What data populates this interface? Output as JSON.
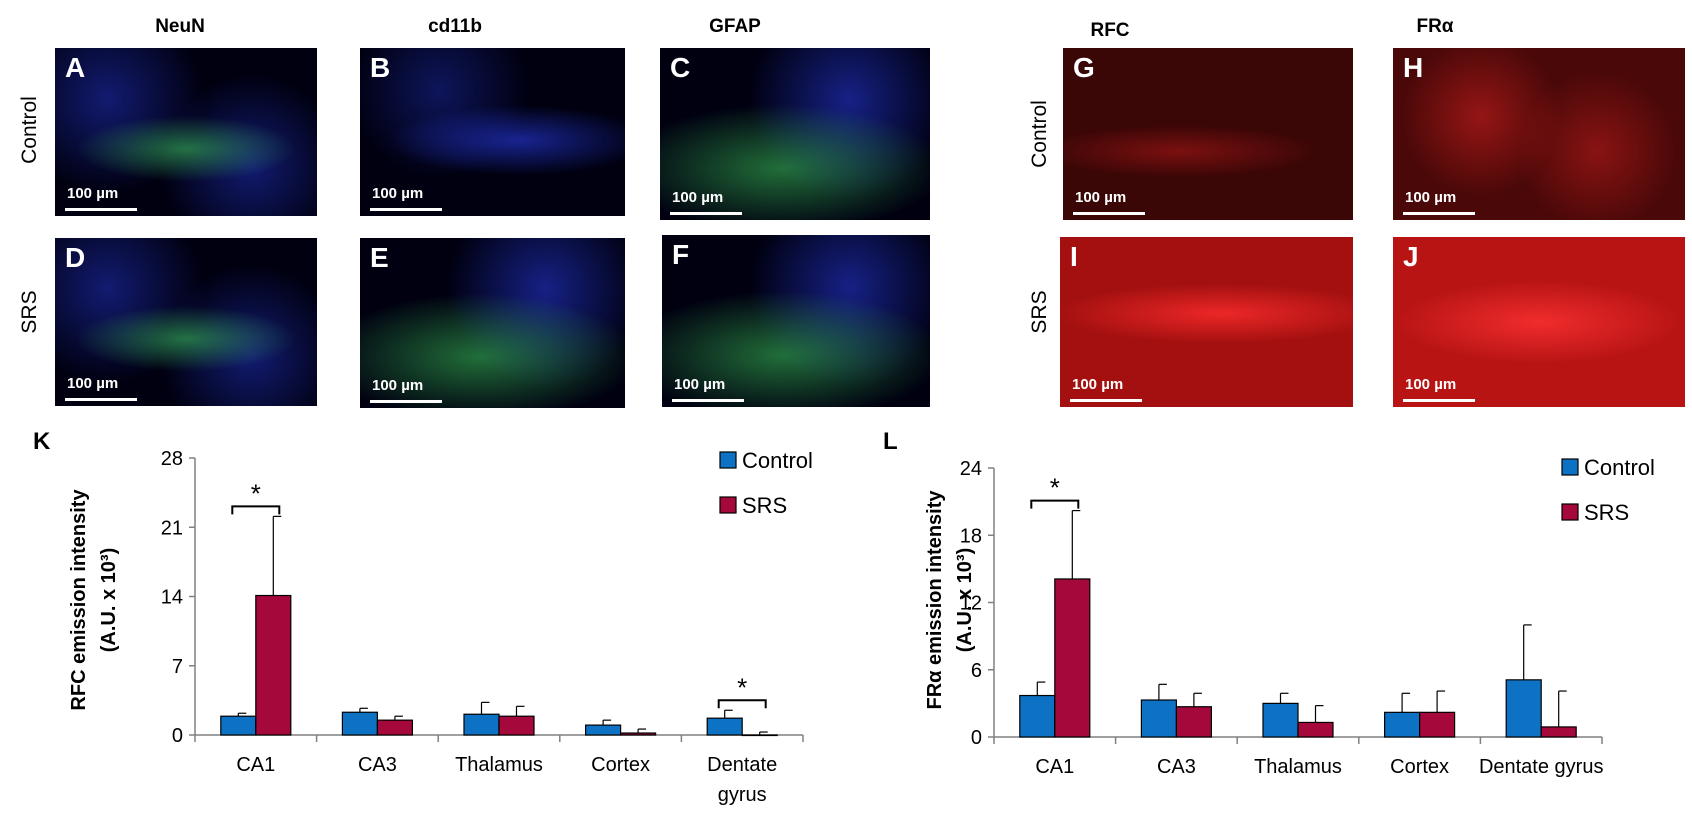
{
  "micrograph_panels": {
    "column_titles": [
      "NeuN",
      "cd11b",
      "GFAP",
      "RFC",
      "FRα"
    ],
    "row_labels_left": [
      "Control",
      "SRS"
    ],
    "row_labels_right": [
      "Control",
      "SRS"
    ],
    "panels": [
      {
        "letter": "A",
        "scale": "100 µm"
      },
      {
        "letter": "B",
        "scale": "100 µm"
      },
      {
        "letter": "C",
        "scale": "100 µm"
      },
      {
        "letter": "D",
        "scale": "100 µm"
      },
      {
        "letter": "E",
        "scale": "100 µm"
      },
      {
        "letter": "F",
        "scale": "100 µm"
      },
      {
        "letter": "G",
        "scale": "100 µm"
      },
      {
        "letter": "H",
        "scale": "100 µm"
      },
      {
        "letter": "I",
        "scale": "100 µm"
      },
      {
        "letter": "J",
        "scale": "100 µm"
      }
    ]
  },
  "chart_panels": {
    "K": "K",
    "L": "L"
  },
  "chart_data": [
    {
      "type": "bar",
      "panel": "K",
      "ylabel_line1": "RFC emission intensity",
      "ylabel_line2": "(A.U. x 10³)",
      "categories": [
        [
          "CA1"
        ],
        [
          "CA3"
        ],
        [
          "Thalamus"
        ],
        [
          "Cortex"
        ],
        [
          "Dentate",
          "gyrus"
        ]
      ],
      "ylim": [
        0,
        28
      ],
      "yticks": [
        0,
        7,
        14,
        21,
        28
      ],
      "series": [
        {
          "name": "Control",
          "color": "#0e72c4",
          "values": [
            1.9,
            2.3,
            2.1,
            1.0,
            1.7
          ],
          "errors": [
            0.3,
            0.4,
            1.2,
            0.5,
            0.8
          ]
        },
        {
          "name": "SRS",
          "color": "#a5083a",
          "values": [
            14.1,
            1.5,
            1.9,
            0.2,
            0.0
          ],
          "errors": [
            8.0,
            0.4,
            1.0,
            0.4,
            0.3
          ]
        }
      ],
      "significance": [
        {
          "category_index": 0,
          "label": "*"
        },
        {
          "category_index": 4,
          "label": "*"
        }
      ],
      "legend_position": "top-right"
    },
    {
      "type": "bar",
      "panel": "L",
      "ylabel_line1": "FRα emission intensity",
      "ylabel_line2": "(A.U. x 10³)",
      "categories": [
        [
          "CA1"
        ],
        [
          "CA3"
        ],
        [
          "Thalamus"
        ],
        [
          "Cortex"
        ],
        [
          "Dentate gyrus"
        ]
      ],
      "ylim": [
        0,
        24
      ],
      "yticks": [
        0,
        6,
        12,
        18,
        24
      ],
      "series": [
        {
          "name": "Control",
          "color": "#0e72c4",
          "values": [
            3.7,
            3.3,
            3.0,
            2.2,
            5.1
          ],
          "errors": [
            1.2,
            1.4,
            0.9,
            1.7,
            4.9
          ]
        },
        {
          "name": "SRS",
          "color": "#a5083a",
          "values": [
            14.1,
            2.7,
            1.3,
            2.2,
            0.9
          ],
          "errors": [
            6.1,
            1.2,
            1.5,
            1.9,
            3.2
          ]
        }
      ],
      "significance": [
        {
          "category_index": 0,
          "label": "*"
        }
      ],
      "legend_position": "top-right"
    }
  ]
}
